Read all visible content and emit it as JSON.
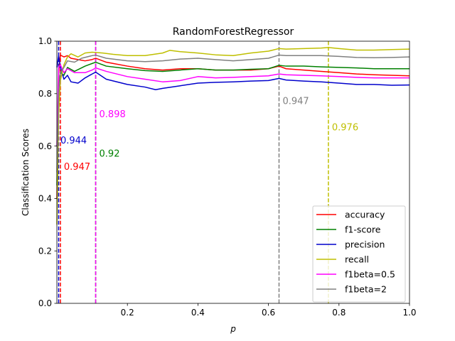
{
  "chart_data": {
    "type": "line",
    "title": "RandomForestRegressor",
    "xlabel": "p",
    "ylabel": "Classification Scores",
    "xlim": [
      0.0,
      1.0
    ],
    "ylim": [
      0.0,
      1.0
    ],
    "grid": false,
    "legend_position": "lower-right",
    "x_ticks": [
      0.2,
      0.4,
      0.6,
      0.8,
      1.0
    ],
    "x_tick_labels": [
      "0.2",
      "0.4",
      "0.6",
      "0.8",
      "1.0"
    ],
    "y_ticks": [
      0.0,
      0.2,
      0.4,
      0.6,
      0.8,
      1.0
    ],
    "y_tick_labels": [
      "0.0",
      "0.2",
      "0.4",
      "0.6",
      "0.8",
      "1.0"
    ],
    "series": [
      {
        "name": "accuracy",
        "color": "#ff0000",
        "points": [
          [
            0.0,
            0.4
          ],
          [
            0.005,
            0.88
          ],
          [
            0.01,
            0.947
          ],
          [
            0.02,
            0.94
          ],
          [
            0.03,
            0.945
          ],
          [
            0.04,
            0.935
          ],
          [
            0.06,
            0.93
          ],
          [
            0.08,
            0.925
          ],
          [
            0.1,
            0.93
          ],
          [
            0.11,
            0.935
          ],
          [
            0.14,
            0.92
          ],
          [
            0.16,
            0.915
          ],
          [
            0.2,
            0.905
          ],
          [
            0.25,
            0.895
          ],
          [
            0.3,
            0.89
          ],
          [
            0.35,
            0.895
          ],
          [
            0.4,
            0.895
          ],
          [
            0.45,
            0.89
          ],
          [
            0.5,
            0.89
          ],
          [
            0.55,
            0.89
          ],
          [
            0.6,
            0.895
          ],
          [
            0.63,
            0.905
          ],
          [
            0.65,
            0.895
          ],
          [
            0.7,
            0.89
          ],
          [
            0.75,
            0.885
          ],
          [
            0.8,
            0.88
          ],
          [
            0.85,
            0.875
          ],
          [
            0.9,
            0.872
          ],
          [
            0.95,
            0.87
          ],
          [
            1.0,
            0.868
          ]
        ]
      },
      {
        "name": "f1-score",
        "color": "#008000",
        "points": [
          [
            0.0,
            0.45
          ],
          [
            0.005,
            0.82
          ],
          [
            0.01,
            0.88
          ],
          [
            0.02,
            0.87
          ],
          [
            0.03,
            0.9
          ],
          [
            0.05,
            0.885
          ],
          [
            0.08,
            0.905
          ],
          [
            0.1,
            0.915
          ],
          [
            0.11,
            0.92
          ],
          [
            0.14,
            0.905
          ],
          [
            0.2,
            0.895
          ],
          [
            0.25,
            0.888
          ],
          [
            0.3,
            0.885
          ],
          [
            0.35,
            0.89
          ],
          [
            0.4,
            0.895
          ],
          [
            0.45,
            0.89
          ],
          [
            0.5,
            0.89
          ],
          [
            0.55,
            0.893
          ],
          [
            0.6,
            0.895
          ],
          [
            0.63,
            0.908
          ],
          [
            0.65,
            0.905
          ],
          [
            0.7,
            0.905
          ],
          [
            0.75,
            0.902
          ],
          [
            0.8,
            0.9
          ],
          [
            0.85,
            0.898
          ],
          [
            0.9,
            0.895
          ],
          [
            0.95,
            0.895
          ],
          [
            1.0,
            0.895
          ]
        ]
      },
      {
        "name": "precision",
        "color": "#0000cc",
        "points": [
          [
            0.0,
            0.9
          ],
          [
            0.005,
            0.944
          ],
          [
            0.01,
            0.9
          ],
          [
            0.02,
            0.855
          ],
          [
            0.03,
            0.87
          ],
          [
            0.04,
            0.845
          ],
          [
            0.06,
            0.84
          ],
          [
            0.08,
            0.86
          ],
          [
            0.1,
            0.875
          ],
          [
            0.11,
            0.882
          ],
          [
            0.14,
            0.855
          ],
          [
            0.2,
            0.835
          ],
          [
            0.25,
            0.825
          ],
          [
            0.28,
            0.815
          ],
          [
            0.3,
            0.82
          ],
          [
            0.35,
            0.83
          ],
          [
            0.4,
            0.84
          ],
          [
            0.45,
            0.843
          ],
          [
            0.5,
            0.845
          ],
          [
            0.55,
            0.848
          ],
          [
            0.6,
            0.85
          ],
          [
            0.63,
            0.858
          ],
          [
            0.65,
            0.852
          ],
          [
            0.7,
            0.848
          ],
          [
            0.75,
            0.845
          ],
          [
            0.8,
            0.84
          ],
          [
            0.85,
            0.835
          ],
          [
            0.9,
            0.835
          ],
          [
            0.95,
            0.832
          ],
          [
            1.0,
            0.833
          ]
        ]
      },
      {
        "name": "recall",
        "color": "#bfbf00",
        "points": [
          [
            0.0,
            0.3
          ],
          [
            0.005,
            0.72
          ],
          [
            0.01,
            0.85
          ],
          [
            0.02,
            0.91
          ],
          [
            0.03,
            0.94
          ],
          [
            0.04,
            0.952
          ],
          [
            0.06,
            0.94
          ],
          [
            0.08,
            0.955
          ],
          [
            0.1,
            0.958
          ],
          [
            0.13,
            0.955
          ],
          [
            0.16,
            0.95
          ],
          [
            0.2,
            0.945
          ],
          [
            0.25,
            0.945
          ],
          [
            0.3,
            0.955
          ],
          [
            0.32,
            0.965
          ],
          [
            0.35,
            0.96
          ],
          [
            0.4,
            0.955
          ],
          [
            0.45,
            0.948
          ],
          [
            0.5,
            0.945
          ],
          [
            0.55,
            0.955
          ],
          [
            0.6,
            0.962
          ],
          [
            0.63,
            0.972
          ],
          [
            0.65,
            0.97
          ],
          [
            0.7,
            0.972
          ],
          [
            0.75,
            0.974
          ],
          [
            0.77,
            0.976
          ],
          [
            0.8,
            0.972
          ],
          [
            0.85,
            0.966
          ],
          [
            0.9,
            0.966
          ],
          [
            0.95,
            0.968
          ],
          [
            1.0,
            0.97
          ]
        ]
      },
      {
        "name": "f1beta=0.5",
        "color": "#ff00ff",
        "points": [
          [
            0.0,
            0.6
          ],
          [
            0.005,
            0.9
          ],
          [
            0.01,
            0.91
          ],
          [
            0.02,
            0.88
          ],
          [
            0.03,
            0.895
          ],
          [
            0.05,
            0.88
          ],
          [
            0.08,
            0.88
          ],
          [
            0.1,
            0.89
          ],
          [
            0.11,
            0.898
          ],
          [
            0.14,
            0.885
          ],
          [
            0.2,
            0.865
          ],
          [
            0.25,
            0.855
          ],
          [
            0.3,
            0.845
          ],
          [
            0.35,
            0.85
          ],
          [
            0.4,
            0.865
          ],
          [
            0.45,
            0.86
          ],
          [
            0.5,
            0.862
          ],
          [
            0.55,
            0.865
          ],
          [
            0.6,
            0.868
          ],
          [
            0.63,
            0.875
          ],
          [
            0.65,
            0.872
          ],
          [
            0.7,
            0.87
          ],
          [
            0.75,
            0.868
          ],
          [
            0.8,
            0.865
          ],
          [
            0.85,
            0.862
          ],
          [
            0.9,
            0.86
          ],
          [
            0.95,
            0.86
          ],
          [
            1.0,
            0.86
          ]
        ]
      },
      {
        "name": "f1beta=2",
        "color": "#808080",
        "points": [
          [
            0.0,
            0.5
          ],
          [
            0.005,
            0.8
          ],
          [
            0.01,
            0.88
          ],
          [
            0.02,
            0.9
          ],
          [
            0.03,
            0.925
          ],
          [
            0.05,
            0.92
          ],
          [
            0.07,
            0.935
          ],
          [
            0.1,
            0.945
          ],
          [
            0.11,
            0.947
          ],
          [
            0.14,
            0.935
          ],
          [
            0.2,
            0.925
          ],
          [
            0.25,
            0.922
          ],
          [
            0.3,
            0.925
          ],
          [
            0.35,
            0.932
          ],
          [
            0.4,
            0.935
          ],
          [
            0.45,
            0.93
          ],
          [
            0.5,
            0.925
          ],
          [
            0.55,
            0.93
          ],
          [
            0.6,
            0.935
          ],
          [
            0.63,
            0.947
          ],
          [
            0.65,
            0.945
          ],
          [
            0.7,
            0.945
          ],
          [
            0.75,
            0.945
          ],
          [
            0.8,
            0.942
          ],
          [
            0.85,
            0.938
          ],
          [
            0.9,
            0.937
          ],
          [
            0.95,
            0.938
          ],
          [
            1.0,
            0.94
          ]
        ]
      }
    ],
    "vlines": [
      {
        "name": "accuracy",
        "x": 0.01,
        "color": "#ff0000",
        "label": "0.947",
        "label_x": 0.02,
        "label_y": 0.51
      },
      {
        "name": "precision",
        "x": 0.005,
        "color": "#0000cc",
        "label": "0.944",
        "label_x": 0.01,
        "label_y": 0.61
      },
      {
        "name": "f1-score",
        "x": 0.11,
        "color": "#008000",
        "label": "0.92",
        "label_x": 0.12,
        "label_y": 0.56
      },
      {
        "name": "f1beta=0.5",
        "x": 0.11,
        "color": "#ff00ff",
        "label": "0.898",
        "label_x": 0.12,
        "label_y": 0.71
      },
      {
        "name": "f1beta=2",
        "x": 0.63,
        "color": "#808080",
        "label": "0.947",
        "label_x": 0.64,
        "label_y": 0.76
      },
      {
        "name": "recall",
        "x": 0.77,
        "color": "#bfbf00",
        "label": "0.976",
        "label_x": 0.78,
        "label_y": 0.66
      }
    ]
  }
}
